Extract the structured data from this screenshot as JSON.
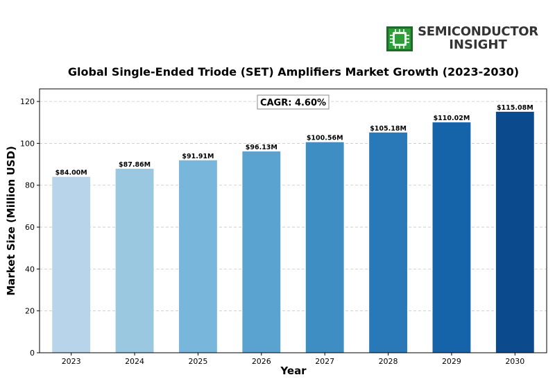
{
  "logo": {
    "line1": "SEMICONDUCTOR",
    "line2": "INSIGHT",
    "icon": "chip-icon",
    "colors": {
      "chip": "#2e9e3a",
      "chip_dark": "#1d6b27",
      "text": "#333333"
    }
  },
  "chart_data": {
    "type": "bar",
    "title": "Global Single-Ended Triode (SET) Amplifiers Market Growth (2023-2030)",
    "xlabel": "Year",
    "ylabel": "Market Size (Million USD)",
    "categories": [
      "2023",
      "2024",
      "2025",
      "2026",
      "2027",
      "2028",
      "2029",
      "2030"
    ],
    "values": [
      84.0,
      87.86,
      91.91,
      96.13,
      100.56,
      105.18,
      110.02,
      115.08
    ],
    "data_labels": [
      "$84.00M",
      "$87.86M",
      "$91.91M",
      "$96.13M",
      "$100.56M",
      "$105.18M",
      "$110.02M",
      "$115.08M"
    ],
    "bar_colors": [
      "#b7d4ea",
      "#9ac8e0",
      "#78b7db",
      "#5aa2cf",
      "#3e8ec4",
      "#2979b9",
      "#1563a9",
      "#0b4a8d"
    ],
    "ylim": [
      0,
      126
    ],
    "yticks": [
      0,
      20,
      40,
      60,
      80,
      100,
      120
    ],
    "grid": true,
    "annotation": "CAGR: 4.60%"
  }
}
